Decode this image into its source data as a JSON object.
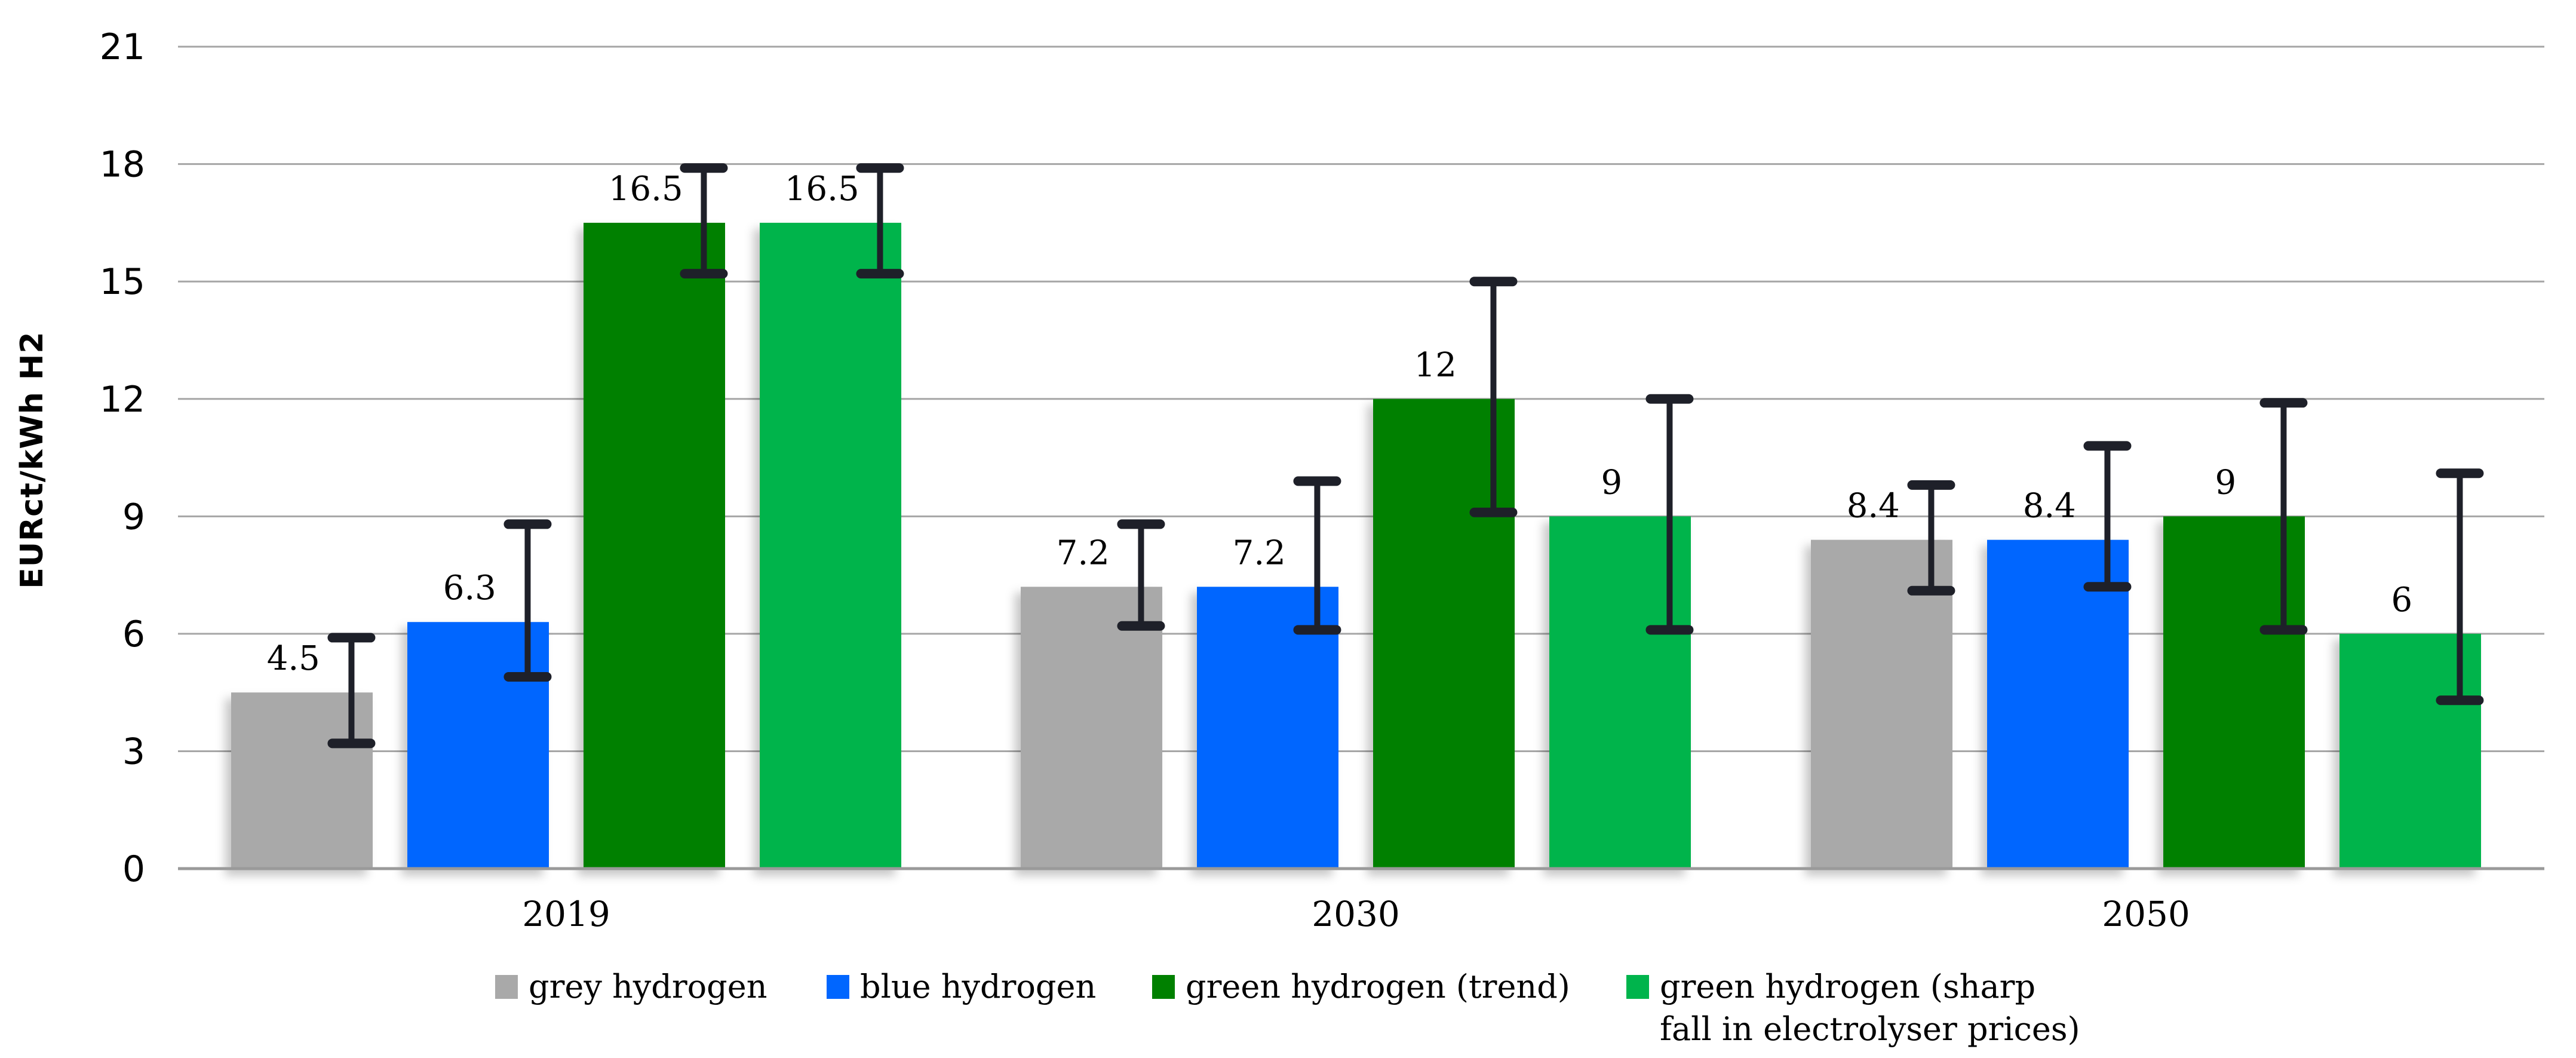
{
  "chart_data": {
    "type": "bar",
    "title": "",
    "ylabel": "EURct/kWh H2",
    "xlabel": "",
    "ylim": [
      0,
      21
    ],
    "yticks": [
      0,
      3,
      6,
      9,
      12,
      15,
      18,
      21
    ],
    "grid": true,
    "legend_position": "bottom",
    "categories": [
      "2019",
      "2030",
      "2050"
    ],
    "series": [
      {
        "name": "grey hydrogen",
        "legend_lines": [
          "grey hydrogen"
        ],
        "color": "#A9A9A9",
        "values": [
          4.5,
          7.2,
          8.4
        ],
        "error_low": [
          3.2,
          6.2,
          7.1
        ],
        "error_high": [
          5.9,
          8.8,
          9.8
        ]
      },
      {
        "name": "blue hydrogen",
        "legend_lines": [
          "blue hydrogen"
        ],
        "color": "#0066FF",
        "values": [
          6.3,
          7.2,
          8.4
        ],
        "error_low": [
          4.9,
          6.1,
          7.2
        ],
        "error_high": [
          8.8,
          9.9,
          10.8
        ]
      },
      {
        "name": "green hydrogen (trend)",
        "legend_lines": [
          "green hydrogen (trend)"
        ],
        "color": "#008000",
        "values": [
          16.5,
          12,
          9
        ],
        "error_low": [
          15.2,
          9.1,
          6.1
        ],
        "error_high": [
          17.9,
          15.0,
          11.9
        ]
      },
      {
        "name": "green hydrogen (sharp fall in electrolyser prices)",
        "legend_lines": [
          "green hydrogen (sharp",
          "fall in electrolyser prices)"
        ],
        "color": "#00B44C",
        "values": [
          16.5,
          9,
          6
        ],
        "error_low": [
          15.2,
          6.1,
          4.3
        ],
        "error_high": [
          17.9,
          12.0,
          10.1
        ]
      }
    ],
    "colors": {
      "gridline": "#A6A6A6",
      "axis_line": "#9A9A9A",
      "error_bar": "#1E2029",
      "text": "#000000"
    }
  }
}
